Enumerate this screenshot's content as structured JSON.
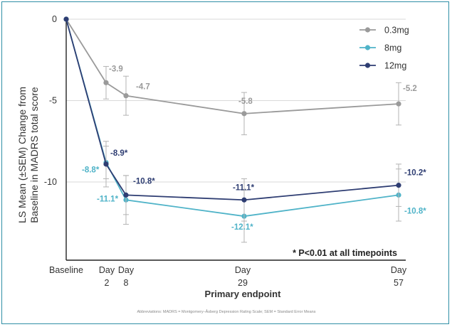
{
  "chart_data": {
    "type": "line",
    "ylabel_line1": "LS Mean (±SEM) Change from",
    "ylabel_line2": "Baseline  in MADRS total score",
    "xlabel": "Primary endpoint",
    "ylim": [
      -14.8,
      0
    ],
    "yticks": [
      {
        "value": 0,
        "label": "0"
      },
      {
        "value": -5,
        "label": "-5"
      },
      {
        "value": -10,
        "label": "-10"
      }
    ],
    "x": [
      0,
      2,
      8,
      29,
      57
    ],
    "xticks": [
      {
        "day": 0,
        "line1": "Baseline",
        "line2": ""
      },
      {
        "day": 2,
        "line1": "Day",
        "line2": "2"
      },
      {
        "day": 8,
        "line1": "Day",
        "line2": "8"
      },
      {
        "day": 29,
        "line1": "Day",
        "line2": "29"
      },
      {
        "day": 57,
        "line1": "Day",
        "line2": "57"
      }
    ],
    "series": [
      {
        "name": "0.3mg",
        "color": "#9a9a9a",
        "values": [
          0,
          -3.9,
          -4.7,
          -5.8,
          -5.2
        ],
        "sem": [
          0,
          1.0,
          1.2,
          1.3,
          1.3
        ],
        "labels": [
          "",
          "-3.9",
          "-4.7",
          "-5.8",
          "-5.2"
        ]
      },
      {
        "name": "8mg",
        "color": "#4fb3c8",
        "values": [
          0,
          -8.8,
          -11.1,
          -12.1,
          -10.8
        ],
        "sem": [
          0,
          1.0,
          1.5,
          1.6,
          1.6
        ],
        "labels": [
          "",
          "-8.8*",
          "-11.1*",
          "-12.1*",
          "-10.8*"
        ]
      },
      {
        "name": "12mg",
        "color": "#2e3d72",
        "values": [
          0,
          -8.9,
          -10.8,
          -11.1,
          -10.2
        ],
        "sem": [
          0,
          1.4,
          1.2,
          1.3,
          1.3
        ],
        "labels": [
          "",
          "-8.9*",
          "-10.8*",
          "-11.1*",
          "-10.2*"
        ]
      }
    ],
    "annotation": "* P<0.01 at all timepoints",
    "footnote": "Abbreviations: MADRS = Montgomery–Åsberg Depression Rating Scale; SEM = Standard Error Means",
    "grid": true,
    "legend_position": "top-right"
  }
}
